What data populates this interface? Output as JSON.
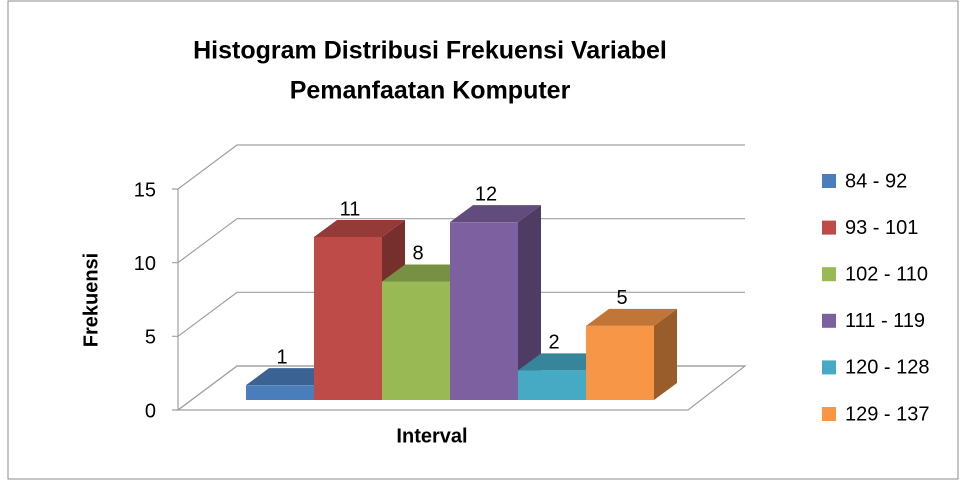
{
  "chart_data": {
    "type": "bar3d",
    "title": "Histogram Distribusi Frekuensi Variabel",
    "subtitle": "Pemanfaatan Komputer",
    "x_label": "Interval",
    "y_label": "Frekuensi",
    "categories": [
      null
    ],
    "series": [
      {
        "name": "84 - 92",
        "color": "#4a7ebb",
        "values": [
          1
        ]
      },
      {
        "name": "93 - 101",
        "color": "#be4b48",
        "values": [
          11
        ]
      },
      {
        "name": "102 - 110",
        "color": "#98b954",
        "values": [
          8
        ]
      },
      {
        "name": "111 - 119",
        "color": "#7d60a0",
        "values": [
          12
        ]
      },
      {
        "name": "120 - 128",
        "color": "#46aac5",
        "values": [
          2
        ]
      },
      {
        "name": "129 - 137",
        "color": "#f79646",
        "values": [
          5
        ]
      }
    ],
    "ylim": [
      0,
      15
    ],
    "yticks": [
      0,
      5,
      10,
      15
    ],
    "grid": true,
    "legend": "right"
  }
}
